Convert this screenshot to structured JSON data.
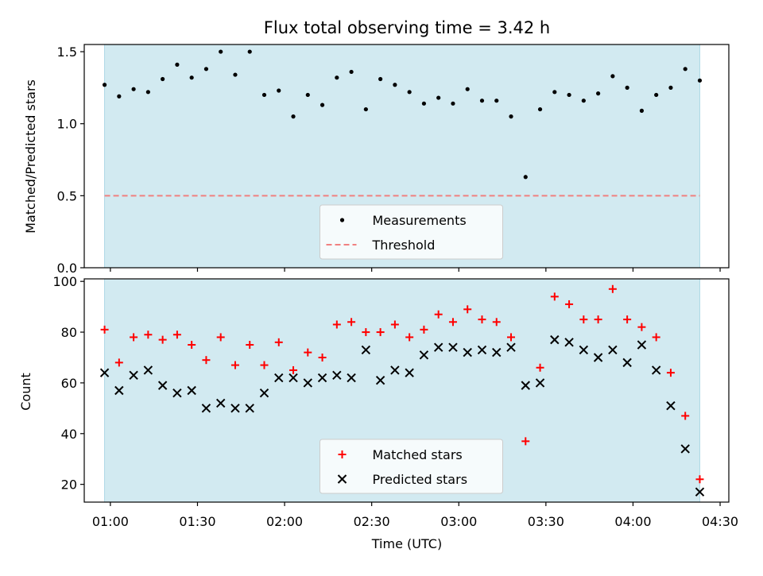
{
  "colors": {
    "observing_span": "#add8e6",
    "threshold": "#f08080",
    "measurements": "#000000",
    "matched": "#ff0000",
    "predicted": "#000000"
  },
  "chart_data": [
    {
      "type": "scatter",
      "panel": "top",
      "title": "Flux total observing time = 3.42 h",
      "ylabel": "Matched/Predicted stars",
      "ylim": [
        0.0,
        1.55
      ],
      "yticks": [
        "0.0",
        "0.5",
        "1.0",
        "1.5"
      ],
      "xlim": [
        "00:51",
        "04:33"
      ],
      "shaded_span": [
        "00:58",
        "04:23"
      ],
      "legend_position": "lower center",
      "threshold": {
        "name": "Threshold",
        "value": 0.5
      },
      "series": [
        {
          "name": "Measurements",
          "x": [
            "00:58",
            "01:03",
            "01:08",
            "01:13",
            "01:18",
            "01:23",
            "01:28",
            "01:33",
            "01:38",
            "01:43",
            "01:48",
            "01:53",
            "01:58",
            "02:03",
            "02:08",
            "02:13",
            "02:18",
            "02:23",
            "02:28",
            "02:33",
            "02:38",
            "02:43",
            "02:48",
            "02:53",
            "02:58",
            "03:03",
            "03:08",
            "03:13",
            "03:18",
            "03:23",
            "03:28",
            "03:33",
            "03:38",
            "03:43",
            "03:48",
            "03:53",
            "03:58",
            "04:03",
            "04:08",
            "04:13",
            "04:18",
            "04:23"
          ],
          "y": [
            1.27,
            1.19,
            1.24,
            1.22,
            1.31,
            1.41,
            1.32,
            1.38,
            1.5,
            1.34,
            1.5,
            1.2,
            1.23,
            1.05,
            1.2,
            1.13,
            1.32,
            1.36,
            1.1,
            1.31,
            1.27,
            1.22,
            1.14,
            1.18,
            1.14,
            1.24,
            1.16,
            1.16,
            1.05,
            0.63,
            1.1,
            1.22,
            1.2,
            1.16,
            1.21,
            1.33,
            1.25,
            1.09,
            1.2,
            1.25,
            1.38,
            1.3
          ]
        }
      ]
    },
    {
      "type": "scatter",
      "panel": "bottom",
      "xlabel": "Time (UTC)",
      "ylabel": "Count",
      "ylim": [
        13,
        101
      ],
      "yticks": [
        "20",
        "40",
        "60",
        "80",
        "100"
      ],
      "xlim": [
        "00:51",
        "04:33"
      ],
      "xticks": [
        "01:00",
        "01:30",
        "02:00",
        "02:30",
        "03:00",
        "03:30",
        "04:00",
        "04:30"
      ],
      "shaded_span": [
        "00:58",
        "04:23"
      ],
      "legend_position": "lower center",
      "series": [
        {
          "name": "Matched stars",
          "marker": "+",
          "x": [
            "00:58",
            "01:03",
            "01:08",
            "01:13",
            "01:18",
            "01:23",
            "01:28",
            "01:33",
            "01:38",
            "01:43",
            "01:48",
            "01:53",
            "01:58",
            "02:03",
            "02:08",
            "02:13",
            "02:18",
            "02:23",
            "02:28",
            "02:33",
            "02:38",
            "02:43",
            "02:48",
            "02:53",
            "02:58",
            "03:03",
            "03:08",
            "03:13",
            "03:18",
            "03:23",
            "03:28",
            "03:33",
            "03:38",
            "03:43",
            "03:48",
            "03:53",
            "03:58",
            "04:03",
            "04:08",
            "04:13",
            "04:18",
            "04:23"
          ],
          "y": [
            81,
            68,
            78,
            79,
            77,
            79,
            75,
            69,
            78,
            67,
            75,
            67,
            76,
            65,
            72,
            70,
            83,
            84,
            80,
            80,
            83,
            78,
            81,
            87,
            84,
            89,
            85,
            84,
            78,
            37,
            66,
            94,
            91,
            85,
            85,
            97,
            85,
            82,
            78,
            64,
            47,
            22
          ]
        },
        {
          "name": "Predicted stars",
          "marker": "x",
          "x": [
            "00:58",
            "01:03",
            "01:08",
            "01:13",
            "01:18",
            "01:23",
            "01:28",
            "01:33",
            "01:38",
            "01:43",
            "01:48",
            "01:53",
            "01:58",
            "02:03",
            "02:08",
            "02:13",
            "02:18",
            "02:23",
            "02:28",
            "02:33",
            "02:38",
            "02:43",
            "02:48",
            "02:53",
            "02:58",
            "03:03",
            "03:08",
            "03:13",
            "03:18",
            "03:23",
            "03:28",
            "03:33",
            "03:38",
            "03:43",
            "03:48",
            "03:53",
            "03:58",
            "04:03",
            "04:08",
            "04:13",
            "04:18",
            "04:23"
          ],
          "y": [
            64,
            57,
            63,
            65,
            59,
            56,
            57,
            50,
            52,
            50,
            50,
            56,
            62,
            62,
            60,
            62,
            63,
            62,
            73,
            61,
            65,
            64,
            71,
            74,
            74,
            72,
            73,
            72,
            74,
            59,
            60,
            77,
            76,
            73,
            70,
            73,
            68,
            75,
            65,
            51,
            34,
            17
          ]
        }
      ]
    }
  ]
}
